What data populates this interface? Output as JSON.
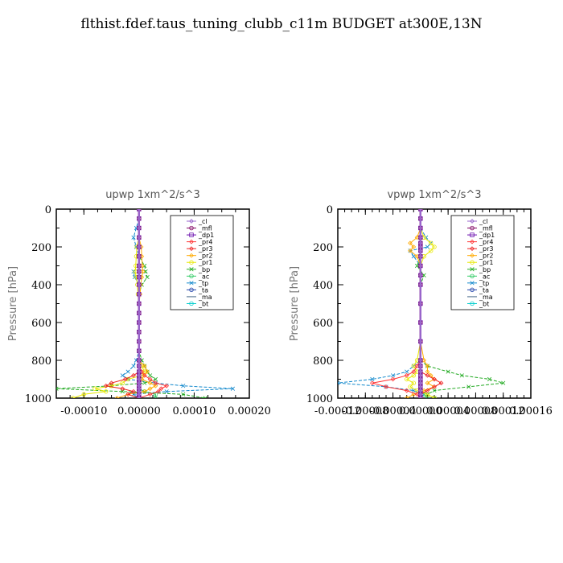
{
  "figure": {
    "title": "flthist.fdef.taus_tuning_clubb_c11m  BUDGET at300E,13N"
  },
  "chart_data": [
    {
      "type": "line",
      "title": "upwp   1xm^2/s^3",
      "ylabel": "Pressure [hPa]",
      "xlabel": "",
      "xlim": [
        -0.00015,
        0.0002
      ],
      "ylim": [
        1000,
        0
      ],
      "y_inverted": true,
      "xticks": [
        -0.0001,
        0.0,
        0.0001,
        0.0002
      ],
      "xtick_labels": [
        "-0.00010",
        "0.00000",
        "0.00010",
        "0.00020"
      ],
      "yticks": [
        0,
        200,
        400,
        600,
        800,
        1000
      ],
      "ytick_labels": [
        "0",
        "200",
        "400",
        "600",
        "800",
        "1000"
      ],
      "legend_position": "top-right",
      "y": [
        0,
        50,
        100,
        150,
        200,
        250,
        300,
        330,
        360,
        400,
        450,
        500,
        550,
        600,
        650,
        700,
        750,
        800,
        830,
        860,
        880,
        900,
        920,
        935,
        950,
        965,
        980,
        1000
      ],
      "series": [
        {
          "name": "_cl",
          "color": "#9966cc",
          "marker": "diamond",
          "values": [
            0,
            0,
            0,
            0,
            0,
            0,
            0,
            0,
            0,
            0,
            0,
            0,
            0,
            0,
            0,
            0,
            0,
            0,
            0,
            0,
            0,
            0,
            0,
            0,
            0,
            0,
            0,
            0
          ]
        },
        {
          "name": "_mfl",
          "color": "#800060",
          "marker": "circle",
          "values": [
            0,
            0,
            0,
            0,
            0,
            0,
            0,
            0,
            0,
            0,
            0,
            0,
            0,
            0,
            0,
            0,
            0,
            0,
            0,
            0,
            0,
            0,
            0,
            0,
            0,
            0,
            0,
            0
          ]
        },
        {
          "name": "_dp1",
          "color": "#6a0dad",
          "marker": "square",
          "values": [
            0,
            0,
            0,
            0,
            0,
            0,
            0,
            0,
            0,
            0,
            0,
            0,
            0,
            0,
            0,
            0,
            0,
            0,
            0,
            0,
            0,
            0,
            0,
            0,
            0,
            0,
            0,
            0
          ]
        },
        {
          "name": "_pr4",
          "color": "#ff3333",
          "marker": "diamond",
          "values": [
            0,
            0,
            0,
            0,
            0,
            0,
            0,
            0,
            0,
            0,
            0,
            0,
            0,
            0,
            0,
            0,
            0,
            0,
            0,
            5e-06,
            1e-05,
            2e-05,
            3e-05,
            5e-05,
            4e-05,
            3.5e-05,
            2e-05,
            0
          ]
        },
        {
          "name": "_pr3",
          "color": "#ee2222",
          "marker": "diamond",
          "values": [
            0,
            0,
            0,
            0,
            0,
            0,
            0,
            0,
            0,
            0,
            0,
            0,
            0,
            0,
            0,
            0,
            0,
            0,
            0,
            0,
            -1e-05,
            -2.5e-05,
            -5e-05,
            -6e-05,
            -3e-05,
            -1e-05,
            -2e-05,
            0
          ]
        },
        {
          "name": "_pr2",
          "color": "#ffaa00",
          "marker": "diamond",
          "values": [
            0,
            0,
            0,
            0,
            4e-06,
            5e-06,
            6e-06,
            7e-06,
            5e-06,
            3e-06,
            2e-06,
            0,
            0,
            0,
            0,
            0,
            0,
            0,
            1e-05,
            1.5e-05,
            1e-05,
            5e-06,
            2e-05,
            3e-05,
            2e-05,
            1e-05,
            -2e-05,
            -4e-05
          ]
        },
        {
          "name": "_pr1",
          "color": "#e8e800",
          "marker": "circle",
          "values": [
            0,
            0,
            0,
            0,
            -4e-06,
            -5e-06,
            -6e-06,
            -7e-06,
            -5e-06,
            -3e-06,
            -2e-06,
            0,
            0,
            0,
            0,
            0,
            0,
            0,
            5e-06,
            1e-05,
            5e-06,
            -2e-05,
            -3e-05,
            -5e-05,
            -8e-05,
            -6e-05,
            -0.0001,
            -0.00012
          ]
        },
        {
          "name": "_bp",
          "color": "#22aa22",
          "marker": "x",
          "values": [
            0,
            0,
            0,
            0,
            0,
            0,
            1e-05,
            1.2e-05,
            1.5e-05,
            5e-06,
            0,
            0,
            0,
            0,
            0,
            0,
            0,
            5e-06,
            1e-05,
            1.5e-05,
            2e-05,
            3e-05,
            1e-05,
            -5e-05,
            -0.00015,
            -3e-05,
            8e-05,
            0.00012
          ]
        },
        {
          "name": "_ac",
          "color": "#33cc66",
          "marker": "circle",
          "values": [
            0,
            0,
            0,
            0,
            0,
            0,
            0,
            0,
            0,
            0,
            0,
            0,
            0,
            0,
            0,
            0,
            0,
            0,
            0,
            0,
            0,
            0,
            0,
            0,
            0,
            1e-05,
            3e-05,
            3e-05
          ]
        },
        {
          "name": "_tp",
          "color": "#1188cc",
          "marker": "x",
          "values": [
            0,
            0,
            -5e-06,
            -1e-05,
            -5e-06,
            0,
            0,
            -1e-05,
            -8e-06,
            0,
            0,
            0,
            0,
            0,
            0,
            0,
            0,
            -5e-06,
            -1e-05,
            -2e-05,
            -3e-05,
            -2e-05,
            3e-05,
            8e-05,
            0.00017,
            5e-05,
            -1e-05,
            0
          ]
        },
        {
          "name": "_ta",
          "color": "#2244aa",
          "marker": "circle",
          "values": [
            0,
            0,
            0,
            0,
            0,
            0,
            0,
            0,
            0,
            0,
            0,
            0,
            0,
            0,
            0,
            0,
            0,
            0,
            0,
            0,
            0,
            0,
            0,
            0,
            0,
            0,
            0,
            0
          ]
        },
        {
          "name": "_ma",
          "color": "#446688",
          "marker": "none",
          "values": [
            0,
            0,
            0,
            0,
            0,
            0,
            0,
            0,
            0,
            0,
            0,
            0,
            0,
            0,
            0,
            0,
            0,
            0,
            0,
            0,
            0,
            0,
            0,
            0,
            0,
            0,
            0,
            0
          ]
        },
        {
          "name": "_bt",
          "color": "#00cccc",
          "marker": "circle",
          "values": [
            0,
            0,
            0,
            0,
            0,
            0,
            0,
            0,
            0,
            0,
            0,
            0,
            0,
            0,
            0,
            0,
            0,
            0,
            0,
            0,
            0,
            0,
            0,
            0,
            0,
            0,
            0,
            0
          ]
        }
      ]
    },
    {
      "type": "line",
      "title": "vpwp   1xm^2/s^3",
      "ylabel": "Pressure [hPa]",
      "xlabel": "",
      "xlim": [
        -0.00012,
        0.00016
      ],
      "ylim": [
        1000,
        0
      ],
      "y_inverted": true,
      "xticks": [
        -0.00012,
        -8e-05,
        -4e-05,
        0.0,
        4e-05,
        8e-05,
        0.00012,
        0.00016
      ],
      "xtick_labels": [
        "-0.00012",
        "-0.00008",
        "-0.00004",
        "0.00000",
        "0.00004",
        "0.00008",
        "0.00012",
        "0.00016"
      ],
      "yticks": [
        0,
        200,
        400,
        600,
        800,
        1000
      ],
      "ytick_labels": [
        "0",
        "200",
        "400",
        "600",
        "800",
        "1000"
      ],
      "legend_position": "top-right",
      "y": [
        0,
        50,
        100,
        150,
        180,
        200,
        220,
        250,
        300,
        350,
        400,
        500,
        600,
        700,
        800,
        830,
        860,
        880,
        900,
        920,
        940,
        960,
        980,
        1000
      ],
      "series": [
        {
          "name": "_cl",
          "color": "#9966cc",
          "marker": "diamond",
          "values": [
            0,
            0,
            0,
            0,
            0,
            0,
            0,
            0,
            0,
            0,
            0,
            0,
            0,
            0,
            0,
            0,
            0,
            0,
            0,
            0,
            0,
            0,
            0,
            0
          ]
        },
        {
          "name": "_mfl",
          "color": "#800060",
          "marker": "circle",
          "values": [
            0,
            0,
            0,
            0,
            0,
            0,
            0,
            0,
            0,
            0,
            0,
            0,
            0,
            0,
            0,
            0,
            0,
            0,
            0,
            0,
            0,
            0,
            0,
            0
          ]
        },
        {
          "name": "_dp1",
          "color": "#6a0dad",
          "marker": "square",
          "values": [
            0,
            0,
            0,
            0,
            0,
            0,
            0,
            0,
            0,
            0,
            0,
            0,
            0,
            0,
            0,
            0,
            0,
            0,
            0,
            0,
            0,
            0,
            0,
            0
          ]
        },
        {
          "name": "_pr4",
          "color": "#ff3333",
          "marker": "diamond",
          "values": [
            0,
            0,
            0,
            0,
            0,
            0,
            0,
            0,
            0,
            0,
            0,
            0,
            0,
            0,
            0,
            -5e-06,
            -1e-05,
            -2e-05,
            -4e-05,
            -7e-05,
            -5e-05,
            -2e-05,
            -5e-06,
            0
          ]
        },
        {
          "name": "_pr3",
          "color": "#ee2222",
          "marker": "diamond",
          "values": [
            0,
            0,
            0,
            0,
            0,
            0,
            0,
            0,
            0,
            0,
            0,
            0,
            0,
            0,
            0,
            0,
            0,
            1e-05,
            2e-05,
            3e-05,
            2e-05,
            1e-05,
            0,
            0
          ]
        },
        {
          "name": "_pr2",
          "color": "#ffaa00",
          "marker": "diamond",
          "values": [
            0,
            0,
            0,
            -5e-06,
            -1.5e-05,
            -1e-05,
            -1.5e-05,
            -5e-06,
            0,
            0,
            0,
            0,
            0,
            0,
            5e-06,
            1e-05,
            1e-05,
            1.5e-05,
            2e-05,
            1e-05,
            2e-05,
            5e-06,
            -1e-05,
            -2e-05
          ]
        },
        {
          "name": "_pr1",
          "color": "#e8e800",
          "marker": "circle",
          "values": [
            0,
            0,
            0,
            5e-06,
            1.5e-05,
            2e-05,
            1.5e-05,
            5e-06,
            0,
            0,
            0,
            0,
            0,
            0,
            -5e-06,
            -1e-05,
            -5e-06,
            -1e-05,
            -2e-05,
            -1e-05,
            -1.5e-05,
            -5e-06,
            1e-05,
            2e-05
          ]
        },
        {
          "name": "_bp",
          "color": "#22aa22",
          "marker": "x",
          "values": [
            0,
            0,
            0,
            0,
            0,
            0,
            0,
            0,
            -5e-06,
            5e-06,
            0,
            0,
            0,
            0,
            0,
            1e-05,
            4e-05,
            6e-05,
            0.0001,
            0.00012,
            7e-05,
            2e-05,
            1e-05,
            2e-05
          ]
        },
        {
          "name": "_ac",
          "color": "#33cc66",
          "marker": "circle",
          "values": [
            0,
            0,
            0,
            0,
            0,
            0,
            0,
            0,
            0,
            0,
            0,
            0,
            0,
            0,
            0,
            0,
            0,
            0,
            0,
            0,
            0,
            0,
            5e-06,
            1e-05
          ]
        },
        {
          "name": "_tp",
          "color": "#1188cc",
          "marker": "x",
          "values": [
            0,
            0,
            0,
            8e-06,
            1.5e-05,
            1e-05,
            -1.5e-05,
            -1e-05,
            0,
            0,
            0,
            0,
            0,
            0,
            0,
            -1e-05,
            -2e-05,
            -4e-05,
            -7e-05,
            -0.00012,
            -5e-05,
            -1e-05,
            5e-06,
            0
          ]
        },
        {
          "name": "_ta",
          "color": "#2244aa",
          "marker": "circle",
          "values": [
            0,
            0,
            0,
            0,
            0,
            0,
            0,
            0,
            0,
            0,
            0,
            0,
            0,
            0,
            0,
            0,
            0,
            0,
            0,
            0,
            0,
            0,
            0,
            0
          ]
        },
        {
          "name": "_ma",
          "color": "#446688",
          "marker": "none",
          "values": [
            0,
            0,
            0,
            0,
            0,
            0,
            0,
            0,
            0,
            0,
            0,
            0,
            0,
            0,
            0,
            0,
            0,
            0,
            0,
            0,
            0,
            0,
            0,
            0
          ]
        },
        {
          "name": "_bt",
          "color": "#00cccc",
          "marker": "circle",
          "values": [
            0,
            0,
            0,
            0,
            0,
            0,
            0,
            0,
            0,
            0,
            0,
            0,
            0,
            0,
            0,
            0,
            0,
            0,
            0,
            0,
            0,
            0,
            0,
            0
          ]
        }
      ]
    }
  ]
}
